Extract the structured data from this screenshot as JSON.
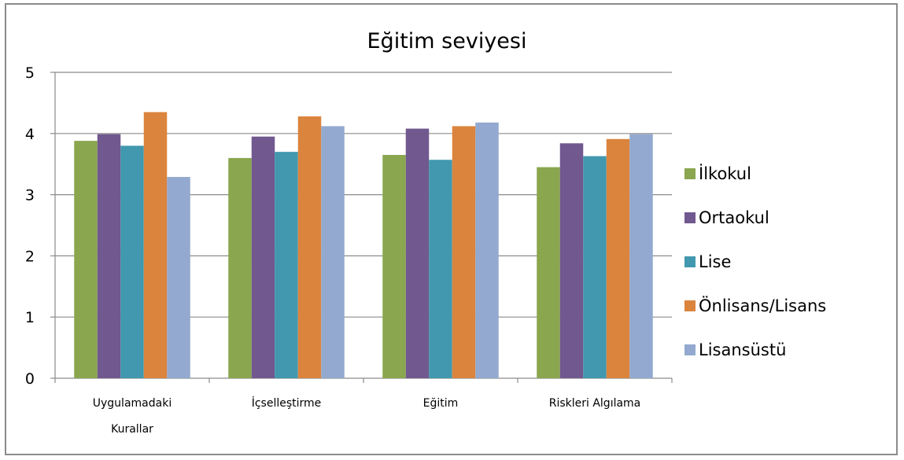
{
  "chart_data": {
    "type": "bar",
    "title": "Eğitim seviyesi",
    "xlabel": "",
    "ylabel": "",
    "ylim": [
      0,
      5
    ],
    "yticks": [
      "0",
      "1",
      "2",
      "3",
      "4",
      "5"
    ],
    "grid": true,
    "legend_position": "right",
    "categories": [
      [
        "Uygulamadaki",
        "Kurallar"
      ],
      [
        "İçselleştirme"
      ],
      [
        "Eğitim"
      ],
      [
        "Riskleri Algılama"
      ]
    ],
    "series": [
      {
        "name": "İlkokul",
        "color": "#8AA64E",
        "values": [
          3.88,
          3.6,
          3.65,
          3.45
        ]
      },
      {
        "name": "Ortaokul",
        "color": "#71588F",
        "values": [
          3.99,
          3.95,
          4.08,
          3.84
        ]
      },
      {
        "name": "Lise",
        "color": "#4198AF",
        "values": [
          3.8,
          3.7,
          3.57,
          3.63
        ]
      },
      {
        "name": "Önlisans/Lisans",
        "color": "#DB843D",
        "values": [
          4.35,
          4.28,
          4.12,
          3.91
        ]
      },
      {
        "name": "Lisansüstü",
        "color": "#93A9CF",
        "values": [
          3.29,
          4.12,
          4.18,
          3.99
        ]
      }
    ]
  }
}
